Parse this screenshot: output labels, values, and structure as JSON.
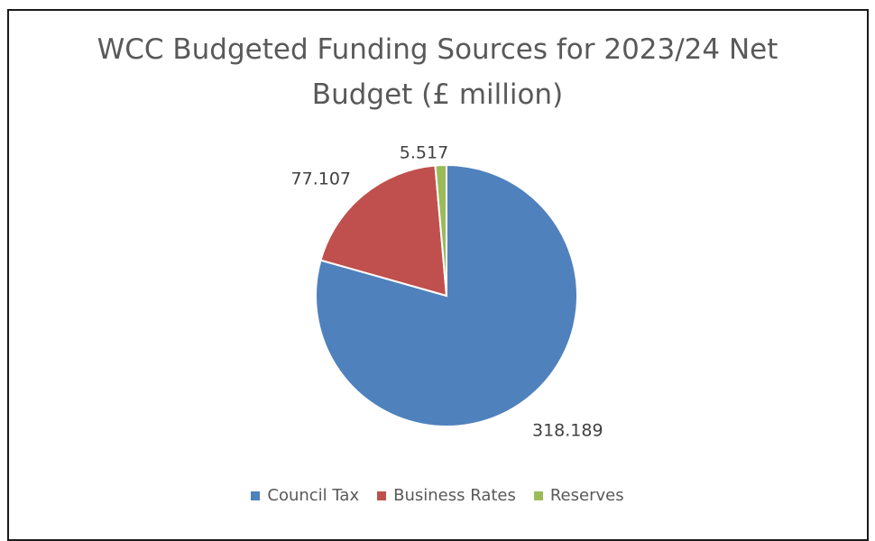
{
  "chart_data": {
    "type": "pie",
    "title": "WCC Budgeted Funding Sources for 2023/24 Net Budget (£ million)",
    "title_lines": [
      "WCC Budgeted Funding Sources for 2023/24 Net",
      "Budget (£ million)"
    ],
    "categories": [
      "Council Tax",
      "Business Rates",
      "Reserves"
    ],
    "values": [
      318.189,
      77.107,
      5.517
    ],
    "value_labels": [
      "318.189",
      "77.107",
      "5.517"
    ],
    "colors": [
      "#4f81bd",
      "#c0504d",
      "#9bbb59"
    ],
    "start_angle_deg": 0,
    "direction": "clockwise",
    "legend_position": "bottom",
    "data_labels_position": "outside"
  }
}
